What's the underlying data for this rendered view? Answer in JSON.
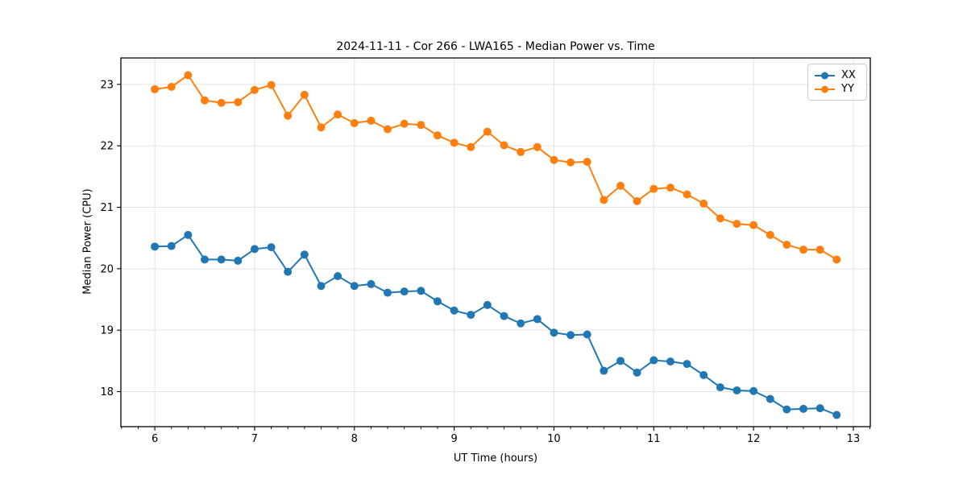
{
  "chart_data": {
    "type": "line",
    "title": "2024-11-11 - Cor 266 - LWA165 - Median Power vs. Time",
    "xlabel": "UT Time (hours)",
    "ylabel": "Median Power (CPU)",
    "xlim": [
      5.66,
      13.17
    ],
    "ylim": [
      17.43,
      23.43
    ],
    "xticks": [
      6,
      7,
      8,
      9,
      10,
      11,
      12,
      13
    ],
    "yticks": [
      18,
      19,
      20,
      21,
      22,
      23
    ],
    "x_minor_step_hours": 0.1667,
    "grid": true,
    "legend_position": "upper right",
    "marker": "circle",
    "grid_color": "#e3e3e3",
    "spine_color": "#000000",
    "x": [
      6,
      6.167,
      6.333,
      6.5,
      6.667,
      6.833,
      7,
      7.167,
      7.333,
      7.5,
      7.667,
      7.833,
      8,
      8.167,
      8.333,
      8.5,
      8.667,
      8.833,
      9,
      9.167,
      9.333,
      9.5,
      9.667,
      9.833,
      10,
      10.167,
      10.333,
      10.5,
      10.667,
      10.833,
      11,
      11.167,
      11.333,
      11.5,
      11.667,
      11.833,
      12,
      12.167,
      12.333,
      12.5,
      12.667,
      12.833
    ],
    "series": [
      {
        "name": "XX",
        "color": "#1f77b4",
        "values": [
          20.36,
          20.37,
          20.55,
          20.15,
          20.15,
          20.13,
          20.32,
          20.35,
          19.95,
          20.23,
          19.72,
          19.88,
          19.72,
          19.75,
          19.61,
          19.63,
          19.64,
          19.47,
          19.32,
          19.25,
          19.41,
          19.23,
          19.11,
          19.18,
          18.96,
          18.92,
          18.93,
          18.34,
          18.5,
          18.31,
          18.51,
          18.49,
          18.45,
          18.27,
          18.07,
          18.02,
          18.01,
          17.88,
          17.71,
          17.72,
          17.73,
          17.62
        ]
      },
      {
        "name": "YY",
        "color": "#ff7f0e",
        "values": [
          22.92,
          22.96,
          23.15,
          22.74,
          22.7,
          22.71,
          22.91,
          22.99,
          22.49,
          22.83,
          22.3,
          22.51,
          22.37,
          22.41,
          22.27,
          22.36,
          22.34,
          22.17,
          22.05,
          21.98,
          22.23,
          22.01,
          21.9,
          21.98,
          21.77,
          21.73,
          21.74,
          21.12,
          21.35,
          21.1,
          21.3,
          21.32,
          21.21,
          21.06,
          20.82,
          20.73,
          20.71,
          20.55,
          20.39,
          20.31,
          20.31,
          20.15
        ]
      }
    ]
  }
}
